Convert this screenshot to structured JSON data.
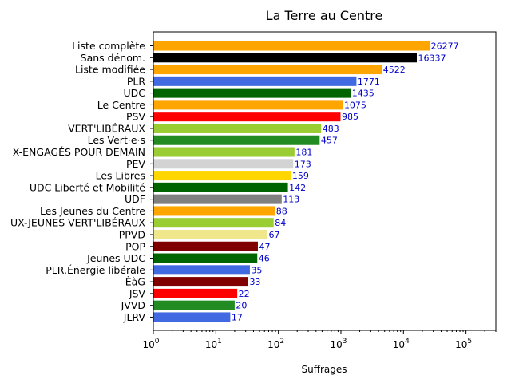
{
  "chart_data": {
    "type": "bar",
    "orientation": "horizontal",
    "title": "La Terre au Centre",
    "xlabel": "Suffrages",
    "ylabel": "",
    "xscale": "log",
    "xlim": [
      1,
      300000
    ],
    "grid": false,
    "categories": [
      "Liste complète",
      "Sans dénom.",
      "Liste modifiée",
      "PLR",
      "UDC",
      "Le Centre",
      "PSV",
      "VERT'LIBÉRAUX",
      "Les Vert·e·s",
      "X-ENGAGÉS POUR DEMAIN",
      "PEV",
      "Les Libres",
      "UDC Liberté et Mobilité",
      "UDF",
      "Les Jeunes du Centre",
      "UX-JEUNES VERT'LIBÉRAUX",
      "PPVD",
      "POP",
      "Jeunes UDC",
      "PLR.Énergie libérale",
      "ÈàG",
      "JSV",
      "JVVD",
      "JLRV"
    ],
    "values": [
      26277,
      16337,
      4522,
      1771,
      1435,
      1075,
      985,
      483,
      457,
      181,
      173,
      159,
      142,
      113,
      88,
      84,
      67,
      47,
      46,
      35,
      33,
      22,
      20,
      17
    ],
    "colors": [
      "#ffa500",
      "#000000",
      "#ffa500",
      "#4169e1",
      "#006400",
      "#ffa500",
      "#ff0000",
      "#9acd32",
      "#228b22",
      "#9acd32",
      "#d3d3d3",
      "#ffd700",
      "#006400",
      "#808080",
      "#ffa500",
      "#9acd32",
      "#f0e68c",
      "#800000",
      "#006400",
      "#4169e1",
      "#800000",
      "#ff0000",
      "#228b22",
      "#4169e1"
    ],
    "value_label_color": "#0000cc",
    "xticks": [
      {
        "base": "10",
        "exp": "0"
      },
      {
        "base": "10",
        "exp": "1"
      },
      {
        "base": "10",
        "exp": "2"
      },
      {
        "base": "10",
        "exp": "3"
      },
      {
        "base": "10",
        "exp": "4"
      },
      {
        "base": "10",
        "exp": "5"
      }
    ]
  }
}
